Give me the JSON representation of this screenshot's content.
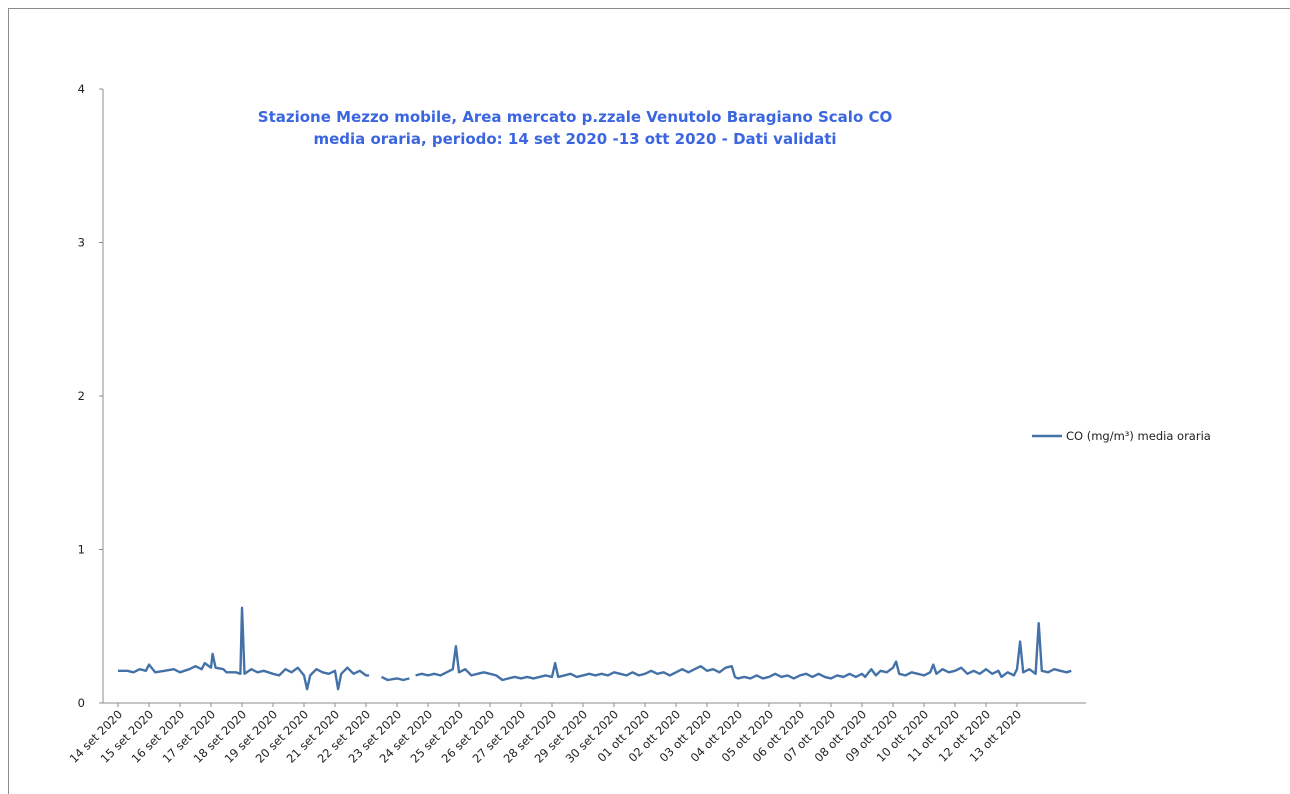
{
  "chart_data": {
    "type": "line",
    "title_lines": [
      "Stazione Mezzo mobile, Area mercato p.zzale Venutolo Baragiano Scalo CO",
      "media oraria, periodo: 14 set 2020 -13 ott 2020 - Dati validati"
    ],
    "xlabel": "",
    "ylabel": "",
    "ylim": [
      0,
      4
    ],
    "y_ticks": [
      "0",
      "1",
      "2",
      "3",
      "4"
    ],
    "categories": [
      "14 set 2020",
      "15 set 2020",
      "16 set 2020",
      "17 set 2020",
      "18 set 2020",
      "19 set 2020",
      "20 set 2020",
      "21 set 2020",
      "22 set 2020",
      "23 set 2020",
      "24 set 2020",
      "25 set 2020",
      "26 set 2020",
      "27 set 2020",
      "28 set 2020",
      "29 set 2020",
      "30 set 2020",
      "01 ott 2020",
      "02 ott 2020",
      "03 ott 2020",
      "04 ott 2020",
      "05 ott 2020",
      "06 ott 2020",
      "07 ott 2020",
      "08 ott 2020",
      "09 ott 2020",
      "10 ott 2020",
      "11 ott 2020",
      "12 ott 2020",
      "13 ott 2020"
    ],
    "grid": false,
    "legend_position": "right",
    "series": [
      {
        "name": "CO (mg/m³) media oraria",
        "color": "#4472a8",
        "points": [
          [
            0.0,
            0.21
          ],
          [
            0.3,
            0.21
          ],
          [
            0.5,
            0.2
          ],
          [
            0.7,
            0.22
          ],
          [
            0.9,
            0.21
          ],
          [
            1.0,
            0.25
          ],
          [
            1.2,
            0.2
          ],
          [
            1.5,
            0.21
          ],
          [
            1.8,
            0.22
          ],
          [
            2.0,
            0.2
          ],
          [
            2.3,
            0.22
          ],
          [
            2.5,
            0.24
          ],
          [
            2.7,
            0.22
          ],
          [
            2.8,
            0.26
          ],
          [
            3.0,
            0.23
          ],
          [
            3.05,
            0.32
          ],
          [
            3.15,
            0.23
          ],
          [
            3.4,
            0.22
          ],
          [
            3.5,
            0.2
          ],
          [
            3.8,
            0.2
          ],
          [
            3.95,
            0.19
          ],
          [
            4.0,
            0.62
          ],
          [
            4.08,
            0.19
          ],
          [
            4.3,
            0.22
          ],
          [
            4.5,
            0.2
          ],
          [
            4.7,
            0.21
          ],
          [
            5.0,
            0.19
          ],
          [
            5.2,
            0.18
          ],
          [
            5.4,
            0.22
          ],
          [
            5.6,
            0.2
          ],
          [
            5.8,
            0.23
          ],
          [
            6.0,
            0.18
          ],
          [
            6.1,
            0.09
          ],
          [
            6.2,
            0.18
          ],
          [
            6.4,
            0.22
          ],
          [
            6.6,
            0.2
          ],
          [
            6.8,
            0.19
          ],
          [
            7.0,
            0.21
          ],
          [
            7.1,
            0.09
          ],
          [
            7.2,
            0.19
          ],
          [
            7.4,
            0.23
          ],
          [
            7.6,
            0.19
          ],
          [
            7.8,
            0.21
          ],
          [
            8.0,
            0.18
          ],
          [
            8.1,
            0.18
          ],
          null,
          [
            8.5,
            0.17
          ],
          [
            8.7,
            0.15
          ],
          [
            9.0,
            0.16
          ],
          [
            9.2,
            0.15
          ],
          [
            9.4,
            0.16
          ],
          null,
          [
            9.6,
            0.18
          ],
          [
            9.8,
            0.19
          ],
          [
            10.0,
            0.18
          ],
          [
            10.2,
            0.19
          ],
          [
            10.4,
            0.18
          ],
          [
            10.6,
            0.2
          ],
          [
            10.8,
            0.22
          ],
          [
            10.9,
            0.37
          ],
          [
            11.0,
            0.2
          ],
          [
            11.2,
            0.22
          ],
          [
            11.4,
            0.18
          ],
          [
            11.6,
            0.19
          ],
          [
            11.8,
            0.2
          ],
          [
            12.0,
            0.19
          ],
          [
            12.2,
            0.18
          ],
          [
            12.4,
            0.15
          ],
          [
            12.6,
            0.16
          ],
          [
            12.8,
            0.17
          ],
          [
            13.0,
            0.16
          ],
          [
            13.2,
            0.17
          ],
          [
            13.4,
            0.16
          ],
          [
            13.6,
            0.17
          ],
          [
            13.8,
            0.18
          ],
          [
            14.0,
            0.17
          ],
          [
            14.1,
            0.26
          ],
          [
            14.2,
            0.17
          ],
          [
            14.4,
            0.18
          ],
          [
            14.6,
            0.19
          ],
          [
            14.8,
            0.17
          ],
          [
            15.0,
            0.18
          ],
          [
            15.2,
            0.19
          ],
          [
            15.4,
            0.18
          ],
          [
            15.6,
            0.19
          ],
          [
            15.8,
            0.18
          ],
          [
            16.0,
            0.2
          ],
          [
            16.2,
            0.19
          ],
          [
            16.4,
            0.18
          ],
          [
            16.6,
            0.2
          ],
          [
            16.8,
            0.18
          ],
          [
            17.0,
            0.19
          ],
          [
            17.2,
            0.21
          ],
          [
            17.4,
            0.19
          ],
          [
            17.6,
            0.2
          ],
          [
            17.8,
            0.18
          ],
          [
            18.0,
            0.2
          ],
          [
            18.2,
            0.22
          ],
          [
            18.4,
            0.2
          ],
          [
            18.6,
            0.22
          ],
          [
            18.8,
            0.24
          ],
          [
            19.0,
            0.21
          ],
          [
            19.2,
            0.22
          ],
          [
            19.4,
            0.2
          ],
          [
            19.6,
            0.23
          ],
          [
            19.8,
            0.24
          ],
          [
            19.9,
            0.17
          ],
          [
            20.0,
            0.16
          ],
          [
            20.2,
            0.17
          ],
          [
            20.4,
            0.16
          ],
          [
            20.6,
            0.18
          ],
          [
            20.8,
            0.16
          ],
          [
            21.0,
            0.17
          ],
          [
            21.2,
            0.19
          ],
          [
            21.4,
            0.17
          ],
          [
            21.6,
            0.18
          ],
          [
            21.8,
            0.16
          ],
          [
            22.0,
            0.18
          ],
          [
            22.2,
            0.19
          ],
          [
            22.4,
            0.17
          ],
          [
            22.6,
            0.19
          ],
          [
            22.8,
            0.17
          ],
          [
            23.0,
            0.16
          ],
          [
            23.2,
            0.18
          ],
          [
            23.4,
            0.17
          ],
          [
            23.6,
            0.19
          ],
          [
            23.8,
            0.17
          ],
          [
            24.0,
            0.19
          ],
          [
            24.1,
            0.17
          ],
          [
            24.3,
            0.22
          ],
          [
            24.45,
            0.18
          ],
          [
            24.6,
            0.21
          ],
          [
            24.8,
            0.2
          ],
          [
            25.0,
            0.23
          ],
          [
            25.1,
            0.27
          ],
          [
            25.2,
            0.19
          ],
          [
            25.4,
            0.18
          ],
          [
            25.6,
            0.2
          ],
          [
            25.8,
            0.19
          ],
          [
            26.0,
            0.18
          ],
          [
            26.2,
            0.2
          ],
          [
            26.3,
            0.25
          ],
          [
            26.4,
            0.19
          ],
          [
            26.6,
            0.22
          ],
          [
            26.8,
            0.2
          ],
          [
            27.0,
            0.21
          ],
          [
            27.2,
            0.23
          ],
          [
            27.4,
            0.19
          ],
          [
            27.6,
            0.21
          ],
          [
            27.8,
            0.19
          ],
          [
            28.0,
            0.22
          ],
          [
            28.2,
            0.19
          ],
          [
            28.4,
            0.21
          ],
          [
            28.5,
            0.17
          ],
          [
            28.7,
            0.2
          ],
          [
            28.9,
            0.18
          ],
          [
            29.0,
            0.22
          ],
          [
            29.1,
            0.4
          ],
          [
            29.2,
            0.2
          ],
          [
            29.4,
            0.22
          ],
          [
            29.6,
            0.19
          ],
          [
            29.7,
            0.52
          ],
          [
            29.8,
            0.21
          ],
          [
            30.0,
            0.2
          ],
          [
            30.2,
            0.22
          ],
          [
            30.4,
            0.21
          ],
          [
            30.6,
            0.2
          ],
          [
            30.75,
            0.21
          ]
        ]
      }
    ]
  }
}
